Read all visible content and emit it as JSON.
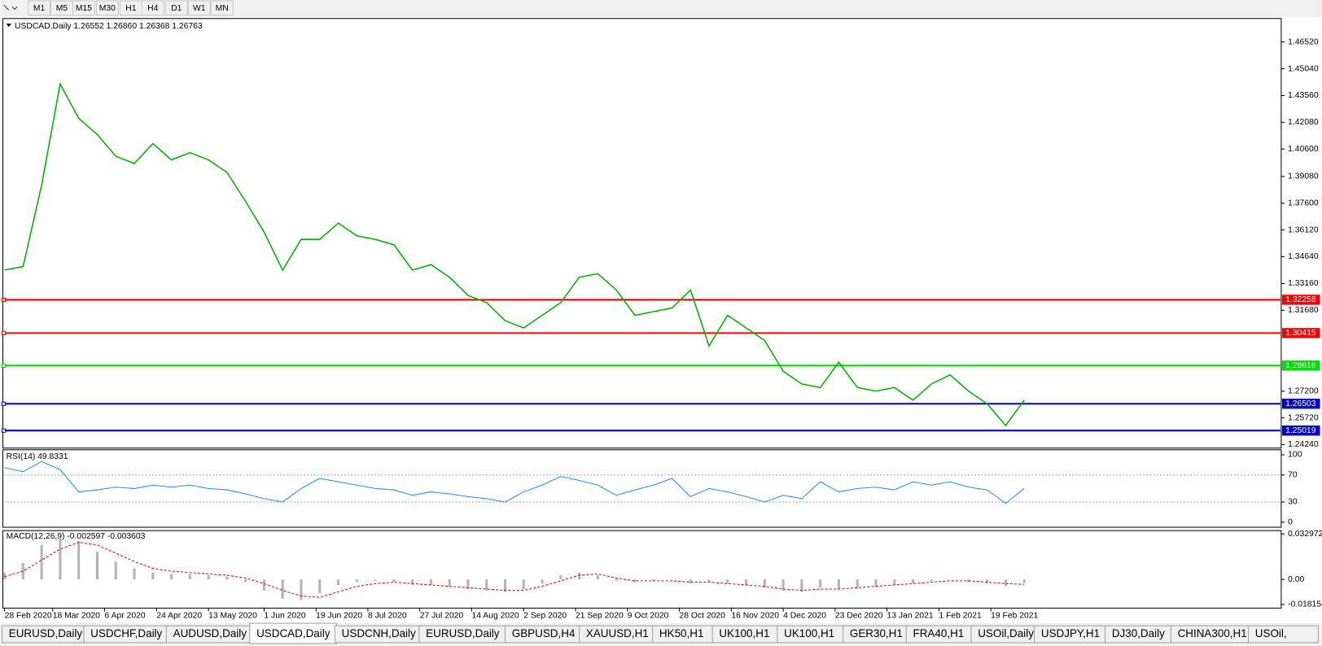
{
  "toolbar": {
    "buttons": [
      "M1",
      "M5",
      "M15",
      "M30",
      "H1",
      "H4",
      "D1",
      "W1",
      "MN"
    ]
  },
  "chart_data": [
    {
      "type": "line",
      "title": "USDCAD,Daily  1.26552 1.26860 1.26368 1.26763",
      "x": [
        0,
        5,
        10,
        15,
        20,
        25,
        30,
        35,
        40,
        45,
        50,
        55,
        60,
        65,
        70,
        75,
        80,
        85,
        90,
        95,
        100,
        105,
        110,
        115,
        120,
        125,
        130,
        135,
        140,
        145,
        150,
        155,
        160,
        165,
        170,
        175,
        180,
        185,
        190,
        195,
        200,
        205,
        210,
        215,
        220,
        225,
        230,
        235,
        240,
        245,
        250,
        255,
        260,
        265,
        270,
        275
      ],
      "xlim": [
        0,
        345
      ],
      "xticks": [
        {
          "value": 0,
          "label": "28 Feb 2020"
        },
        {
          "value": 13,
          "label": "18 Mar 2020"
        },
        {
          "value": 27,
          "label": "6 Apr 2020"
        },
        {
          "value": 41,
          "label": "24 Apr 2020"
        },
        {
          "value": 55,
          "label": "13 May 2020"
        },
        {
          "value": 70,
          "label": "1 Jun 2020"
        },
        {
          "value": 84,
          "label": "19 Jun 2020"
        },
        {
          "value": 98,
          "label": "8 Jul 2020"
        },
        {
          "value": 112,
          "label": "27 Jul 2020"
        },
        {
          "value": 126,
          "label": "14 Aug 2020"
        },
        {
          "value": 140,
          "label": "2 Sep 2020"
        },
        {
          "value": 154,
          "label": "21 Sep 2020"
        },
        {
          "value": 168,
          "label": "9 Oct 2020"
        },
        {
          "value": 182,
          "label": "28 Oct 2020"
        },
        {
          "value": 196,
          "label": "16 Nov 2020"
        },
        {
          "value": 210,
          "label": "4 Dec 2020"
        },
        {
          "value": 224,
          "label": "23 Dec 2020"
        },
        {
          "value": 238,
          "label": "13 Jan 2021"
        },
        {
          "value": 252,
          "label": "1 Feb 2021"
        },
        {
          "value": 266,
          "label": "19 Feb 2021"
        }
      ],
      "ylim": [
        1.2405,
        1.4782
      ],
      "yticks": [
        {
          "value": 1.4652,
          "label": "1.46520"
        },
        {
          "value": 1.4504,
          "label": "1.45040"
        },
        {
          "value": 1.4356,
          "label": "1.43560"
        },
        {
          "value": 1.4208,
          "label": "1.42080"
        },
        {
          "value": 1.406,
          "label": "1.40600"
        },
        {
          "value": 1.3908,
          "label": "1.39080"
        },
        {
          "value": 1.376,
          "label": "1.37600"
        },
        {
          "value": 1.3612,
          "label": "1.36120"
        },
        {
          "value": 1.3464,
          "label": "1.34640"
        },
        {
          "value": 1.3316,
          "label": "1.33160"
        },
        {
          "value": 1.3168,
          "label": "1.31680"
        },
        {
          "value": 1.272,
          "label": "1.27200"
        },
        {
          "value": 1.2572,
          "label": "1.25720"
        },
        {
          "value": 1.2424,
          "label": "1.24240"
        }
      ],
      "series": [
        {
          "color": "#00b400",
          "values": [
            1.339,
            1.341,
            1.386,
            1.442,
            1.423,
            1.414,
            1.402,
            1.398,
            1.409,
            1.4,
            1.404,
            1.4,
            1.393,
            1.377,
            1.36,
            1.339,
            1.356,
            1.356,
            1.365,
            1.358,
            1.356,
            1.353,
            1.339,
            1.342,
            1.335,
            1.325,
            1.321,
            1.311,
            1.307,
            1.314,
            1.321,
            1.335,
            1.337,
            1.328,
            1.314,
            1.316,
            1.318,
            1.328,
            1.297,
            1.314,
            1.307,
            1.3,
            1.283,
            1.276,
            1.274,
            1.288,
            1.274,
            1.272,
            1.274,
            1.267,
            1.276,
            1.281,
            1.272,
            1.265,
            1.253,
            1.267
          ]
        }
      ],
      "levels": [
        {
          "value": 1.32258,
          "color": "#ff0000"
        },
        {
          "value": 1.30415,
          "color": "#ff0000"
        },
        {
          "value": 1.28616,
          "color": "#00dd00"
        },
        {
          "value": 1.26503,
          "color": "#0000c8"
        },
        {
          "value": 1.25019,
          "color": "#0000c8"
        }
      ]
    },
    {
      "type": "line",
      "title": "RSI(14) 49.8331",
      "ylim": [
        -7.5,
        107.5
      ],
      "yticks": [
        100,
        70,
        30,
        0
      ],
      "levels": [
        {
          "value": 70,
          "color": "#a0a0a0"
        },
        {
          "value": 30,
          "color": "#a0a0a0"
        }
      ],
      "series": [
        {
          "color": "#1e90ff",
          "values": [
            81,
            75,
            90,
            78,
            45,
            48,
            52,
            50,
            55,
            52,
            55,
            50,
            48,
            42,
            35,
            30,
            50,
            65,
            60,
            55,
            50,
            48,
            40,
            45,
            42,
            38,
            35,
            30,
            45,
            55,
            68,
            62,
            55,
            40,
            48,
            55,
            65,
            38,
            50,
            45,
            38,
            30,
            40,
            35,
            60,
            45,
            50,
            52,
            48,
            60,
            55,
            60,
            52,
            48,
            28,
            50
          ]
        }
      ]
    },
    {
      "type": "bar",
      "title": "MACD(12,26,9) -0.002597 -0.003603",
      "ylim": [
        -0.0208,
        0.0354
      ],
      "yticks": [
        0.032972,
        {
          "value": 0,
          "label": "0.00"
        },
        -0.018154
      ],
      "series": [
        {
          "type": "bar",
          "color": "#b4b4b4",
          "values": [
            0.005,
            0.012,
            0.025,
            0.03,
            0.028,
            0.02,
            0.013,
            0.008,
            0.005,
            0.004,
            0.004,
            0.003,
            0.002,
            -0.002,
            -0.008,
            -0.014,
            -0.015,
            -0.01,
            -0.004,
            -0.002,
            -0.001,
            -0.002,
            -0.004,
            -0.004,
            -0.005,
            -0.007,
            -0.008,
            -0.009,
            -0.007,
            -0.003,
            0.003,
            0.005,
            0.003,
            -0.001,
            -0.002,
            -0.001,
            0,
            -0.003,
            -0.002,
            -0.003,
            -0.004,
            -0.006,
            -0.008,
            -0.009,
            -0.006,
            -0.007,
            -0.006,
            -0.005,
            -0.004,
            -0.003,
            -0.001,
            0,
            -0.002,
            -0.003,
            -0.005,
            -0.0026
          ]
        },
        {
          "type": "line",
          "color": "#ff0000",
          "values": [
            0.002,
            0.006,
            0.014,
            0.022,
            0.027,
            0.025,
            0.019,
            0.013,
            0.008,
            0.006,
            0.005,
            0.004,
            0.003,
            0.001,
            -0.003,
            -0.008,
            -0.012,
            -0.013,
            -0.009,
            -0.005,
            -0.003,
            -0.002,
            -0.003,
            -0.004,
            -0.005,
            -0.006,
            -0.007,
            -0.008,
            -0.008,
            -0.005,
            -0.001,
            0.003,
            0.004,
            0.001,
            -0.001,
            -0.001,
            -0.001,
            -0.002,
            -0.002,
            -0.003,
            -0.004,
            -0.005,
            -0.007,
            -0.008,
            -0.007,
            -0.007,
            -0.006,
            -0.005,
            -0.004,
            -0.003,
            -0.002,
            -0.001,
            -0.001,
            -0.002,
            -0.003,
            -0.0036
          ]
        }
      ]
    }
  ],
  "tabs": {
    "items": [
      "EURUSD,Daily",
      "USDCHF,Daily",
      "AUDUSD,Daily",
      "USDCAD,Daily",
      "USDCNH,Daily",
      "EURUSD,Daily",
      "GBPUSD,H4",
      "XAUUSD,H1",
      "HK50,H1",
      "UK100,H1",
      "UK100,H1",
      "GER30,H1",
      "FRA40,H1",
      "USOil,Daily",
      "USDJPY,H1",
      "DJ30,Daily",
      "CHINA300,H1",
      "USOil,"
    ],
    "active": 3
  }
}
